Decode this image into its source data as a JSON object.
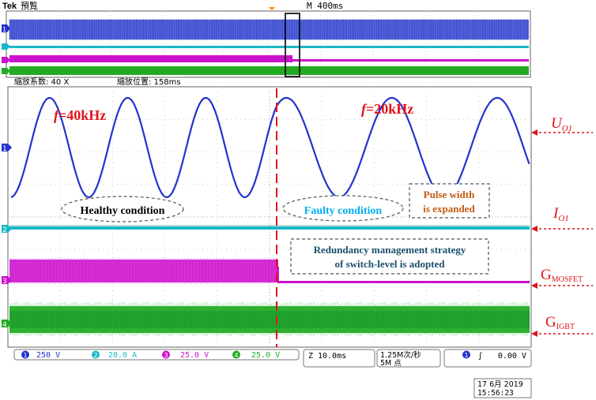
{
  "header": {
    "brand": "Tek",
    "mode": "預覧",
    "timebase": "M 400ms",
    "zoom_factor": "縮放系数: 40 X",
    "zoom_position": "縮放位置:  158ms"
  },
  "channels": [
    {
      "num": "1",
      "value": "250 V",
      "color": "#2233cc"
    },
    {
      "num": "2",
      "value": "20.0 A",
      "color": "#19b8c6"
    },
    {
      "num": "3",
      "value": "25.0 V",
      "color": "#cc11cc"
    },
    {
      "num": "4",
      "value": "25.0 V",
      "color": "#22aa22"
    }
  ],
  "horizontal": {
    "scale": "10.0ms",
    "rate": "1.25M次/秒",
    "points": "5M 点"
  },
  "trigger": {
    "channel": "1",
    "symbol": "∫",
    "level": "0.00 V"
  },
  "datetime": {
    "date": "17 6月  2019",
    "time": "15:56:23"
  },
  "annotations": {
    "freq_left_prefix": "f",
    "freq_left_value": "=40kHz",
    "freq_right_prefix": "f",
    "freq_right_value": "=20kHz",
    "healthy": "Healthy condition",
    "faulty": "Faulty condition",
    "pulse_line1": "Pulse width",
    "pulse_line2": "is expanded",
    "strategy_line1": "Redundancy management strategy",
    "strategy_line2": "of switch-level is adopted"
  },
  "labels": {
    "uo_main": "U",
    "uo_sub": "O1",
    "io_main": "I",
    "io_sub": "O1",
    "gmos_main": "G",
    "gmos_sub": "MOSFET",
    "gigbt_main": "G",
    "gigbt_sub": "IGBT"
  },
  "chart_data": {
    "type": "line",
    "series": [
      {
        "name": "U",
        "segments": [
          {
            "label": "Healthy condition",
            "cycles": 3.4
          },
          {
            "label": "Faulty condition",
            "cycles": 2.4
          }
        ]
      },
      {
        "name": "I",
        "description": "flat"
      },
      {
        "name": "G",
        "description": "pulse train before fault, low after"
      },
      {
        "name": "G",
        "description": "pulse train throughout"
      }
    ]
  }
}
